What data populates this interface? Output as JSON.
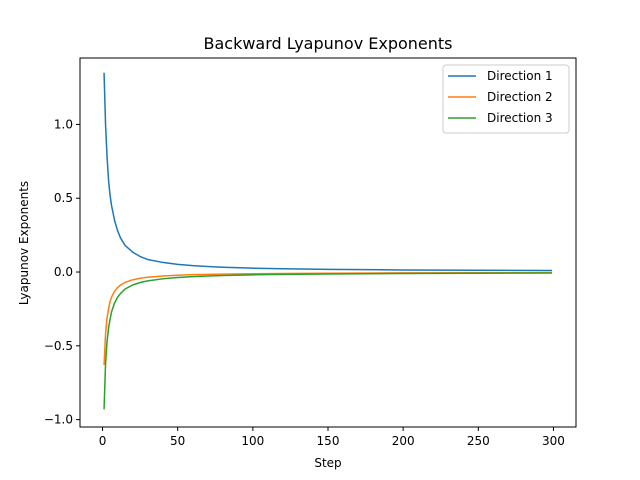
{
  "chart_data": {
    "type": "line",
    "title": "Backward Lyapunov Exponents",
    "xlabel": "Step",
    "ylabel": "Lyapunov Exponents",
    "xlim": [
      -15,
      315
    ],
    "ylim": [
      -1.05,
      1.45
    ],
    "xticks": [
      0,
      50,
      100,
      150,
      200,
      250,
      300
    ],
    "yticks": [
      -1.0,
      -0.5,
      0.0,
      0.5,
      1.0
    ],
    "xtick_labels": [
      "0",
      "50",
      "100",
      "150",
      "200",
      "250",
      "300"
    ],
    "ytick_labels": [
      "−1.0",
      "−0.5",
      "0.0",
      "0.5",
      "1.0"
    ],
    "grid": false,
    "legend_position": "top-right",
    "series": [
      {
        "name": "Direction 1",
        "color": "#1f77b4",
        "x": [
          1,
          2,
          3,
          4,
          5,
          6,
          8,
          10,
          12,
          15,
          20,
          25,
          30,
          40,
          50,
          60,
          70,
          80,
          100,
          120,
          150,
          200,
          250,
          299
        ],
        "y": [
          1.35,
          1.0,
          0.78,
          0.62,
          0.52,
          0.45,
          0.35,
          0.28,
          0.23,
          0.18,
          0.135,
          0.105,
          0.085,
          0.065,
          0.052,
          0.043,
          0.037,
          0.032,
          0.026,
          0.022,
          0.018,
          0.014,
          0.012,
          0.01
        ]
      },
      {
        "name": "Direction 2",
        "color": "#ff7f0e",
        "x": [
          1,
          2,
          3,
          4,
          5,
          6,
          8,
          10,
          12,
          15,
          20,
          25,
          30,
          40,
          50,
          60,
          70,
          80,
          100,
          120,
          150,
          200,
          250,
          299
        ],
        "y": [
          -0.63,
          -0.42,
          -0.31,
          -0.25,
          -0.2,
          -0.17,
          -0.13,
          -0.105,
          -0.088,
          -0.07,
          -0.053,
          -0.042,
          -0.035,
          -0.027,
          -0.022,
          -0.018,
          -0.016,
          -0.014,
          -0.012,
          -0.01,
          -0.008,
          -0.006,
          -0.005,
          -0.004
        ]
      },
      {
        "name": "Direction 3",
        "color": "#2ca02c",
        "x": [
          1,
          2,
          3,
          4,
          5,
          6,
          8,
          10,
          12,
          15,
          20,
          25,
          30,
          40,
          50,
          60,
          70,
          80,
          100,
          120,
          150,
          200,
          250,
          299
        ],
        "y": [
          -0.93,
          -0.62,
          -0.47,
          -0.38,
          -0.32,
          -0.27,
          -0.21,
          -0.17,
          -0.145,
          -0.115,
          -0.088,
          -0.071,
          -0.06,
          -0.046,
          -0.037,
          -0.031,
          -0.027,
          -0.024,
          -0.019,
          -0.016,
          -0.013,
          -0.01,
          -0.008,
          -0.007
        ]
      }
    ]
  }
}
